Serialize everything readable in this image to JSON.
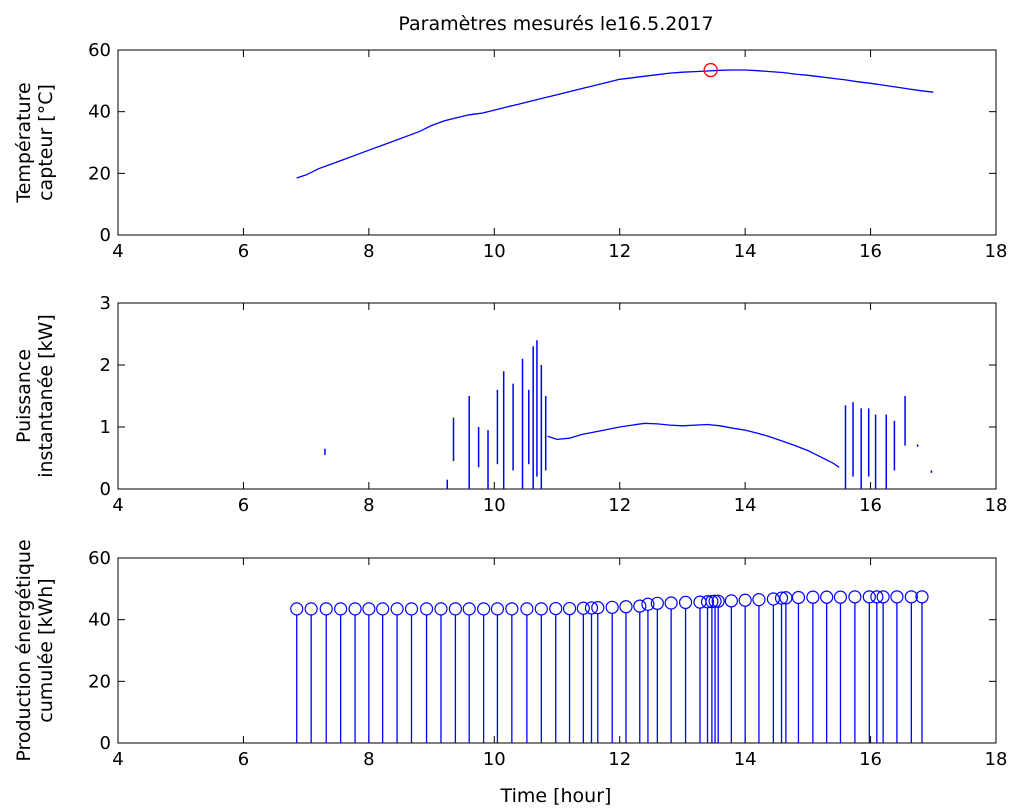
{
  "figure": {
    "title": "Paramètres mesurés le16.5.2017",
    "xlabel": "Time [hour]"
  },
  "colors": {
    "series": "#0000ff",
    "marker_max": "#ff0000",
    "axis": "#000000",
    "background": "#ffffff"
  },
  "chart_data": [
    {
      "type": "line",
      "title": "Paramètres mesurés le16.5.2017",
      "ylabel": [
        "Température",
        "capteur [°C]"
      ],
      "xlabel": "",
      "xlim": [
        4,
        18
      ],
      "ylim": [
        0,
        60
      ],
      "xticks": [
        "4",
        "6",
        "8",
        "10",
        "12",
        "14",
        "16",
        "18"
      ],
      "yticks": [
        "0",
        "20",
        "40",
        "60"
      ],
      "grid": false,
      "series": [
        {
          "x": [
            6.85,
            7.0,
            7.2,
            7.4,
            7.6,
            7.8,
            8.0,
            8.2,
            8.4,
            8.6,
            8.8,
            9.0,
            9.2,
            9.4,
            9.6,
            9.8,
            10.0,
            10.2,
            10.4,
            10.6,
            10.8,
            11.0,
            11.2,
            11.4,
            11.6,
            11.8,
            12.0,
            12.2,
            12.4,
            12.6,
            12.8,
            13.0,
            13.2,
            13.4,
            13.6,
            13.8,
            14.0,
            14.2,
            14.4,
            14.6,
            14.8,
            15.0,
            15.2,
            15.4,
            15.6,
            15.8,
            16.0,
            16.2,
            16.4,
            16.6,
            16.8,
            17.0
          ],
          "y": [
            18.5,
            19.5,
            21.5,
            23.0,
            24.5,
            26.0,
            27.5,
            29.0,
            30.5,
            32.0,
            33.5,
            35.5,
            37.0,
            38.0,
            39.0,
            39.5,
            40.5,
            41.5,
            42.5,
            43.5,
            44.5,
            45.5,
            46.5,
            47.5,
            48.5,
            49.5,
            50.5,
            51.0,
            51.5,
            52.0,
            52.5,
            52.8,
            53.0,
            53.2,
            53.4,
            53.5,
            53.5,
            53.3,
            53.0,
            52.7,
            52.2,
            51.8,
            51.3,
            50.8,
            50.3,
            49.7,
            49.2,
            48.6,
            48.0,
            47.4,
            46.8,
            46.3
          ]
        }
      ],
      "max_marker": {
        "x": 13.45,
        "y": 53.5
      }
    },
    {
      "type": "line",
      "ylabel": [
        "Puissance",
        "instantanée [kW]"
      ],
      "xlabel": "",
      "xlim": [
        4,
        18
      ],
      "ylim": [
        0,
        3
      ],
      "xticks": [
        "4",
        "6",
        "8",
        "10",
        "12",
        "14",
        "16",
        "18"
      ],
      "yticks": [
        "0",
        "1",
        "2",
        "3"
      ],
      "grid": false,
      "series": [
        {
          "x": [
            10.85,
            11.0,
            11.2,
            11.4,
            11.6,
            11.8,
            12.0,
            12.2,
            12.4,
            12.6,
            12.8,
            13.0,
            13.2,
            13.4,
            13.6,
            13.8,
            14.0,
            14.2,
            14.4,
            14.6,
            14.8,
            15.0,
            15.2,
            15.4,
            15.5
          ],
          "y": [
            0.85,
            0.8,
            0.82,
            0.88,
            0.92,
            0.96,
            1.0,
            1.03,
            1.06,
            1.05,
            1.03,
            1.02,
            1.03,
            1.04,
            1.02,
            0.98,
            0.95,
            0.9,
            0.84,
            0.77,
            0.7,
            0.62,
            0.52,
            0.42,
            0.35
          ]
        }
      ],
      "spikes": [
        {
          "x": 7.3,
          "y0": 0.55,
          "y1": 0.65
        },
        {
          "x": 9.25,
          "y0": 0.0,
          "y1": 0.15
        },
        {
          "x": 9.35,
          "y0": 0.45,
          "y1": 1.15
        },
        {
          "x": 9.6,
          "y0": 0.0,
          "y1": 1.5
        },
        {
          "x": 9.75,
          "y0": 0.35,
          "y1": 1.0
        },
        {
          "x": 9.9,
          "y0": 0.0,
          "y1": 0.95
        },
        {
          "x": 10.05,
          "y0": 0.4,
          "y1": 1.6
        },
        {
          "x": 10.15,
          "y0": 0.0,
          "y1": 1.9
        },
        {
          "x": 10.3,
          "y0": 0.3,
          "y1": 1.7
        },
        {
          "x": 10.45,
          "y0": 0.0,
          "y1": 2.1
        },
        {
          "x": 10.55,
          "y0": 0.4,
          "y1": 1.6
        },
        {
          "x": 10.62,
          "y0": 0.0,
          "y1": 2.3
        },
        {
          "x": 10.68,
          "y0": 0.2,
          "y1": 2.4
        },
        {
          "x": 10.75,
          "y0": 0.0,
          "y1": 2.0
        },
        {
          "x": 10.82,
          "y0": 0.3,
          "y1": 1.5
        },
        {
          "x": 15.6,
          "y0": 0.0,
          "y1": 1.35
        },
        {
          "x": 15.72,
          "y0": 0.2,
          "y1": 1.4
        },
        {
          "x": 15.85,
          "y0": 0.0,
          "y1": 1.3
        },
        {
          "x": 15.97,
          "y0": 0.2,
          "y1": 1.3
        },
        {
          "x": 16.08,
          "y0": 0.0,
          "y1": 1.2
        },
        {
          "x": 16.25,
          "y0": 0.0,
          "y1": 1.2
        },
        {
          "x": 16.38,
          "y0": 0.3,
          "y1": 1.1
        },
        {
          "x": 16.55,
          "y0": 0.7,
          "y1": 1.5
        },
        {
          "x": 16.75,
          "y0": 0.68,
          "y1": 0.72
        },
        {
          "x": 16.97,
          "y0": 0.26,
          "y1": 0.3
        }
      ]
    },
    {
      "type": "stem",
      "ylabel": [
        "Production énergétique",
        "cumulée [kWh]"
      ],
      "xlabel": "Time [hour]",
      "xlim": [
        4,
        18
      ],
      "ylim": [
        0,
        60
      ],
      "xticks": [
        "4",
        "6",
        "8",
        "10",
        "12",
        "14",
        "16",
        "18"
      ],
      "yticks": [
        "0",
        "20",
        "40",
        "60"
      ],
      "grid": false,
      "series": [
        {
          "x": [
            6.85,
            7.08,
            7.32,
            7.55,
            7.78,
            8.0,
            8.22,
            8.45,
            8.68,
            8.92,
            9.15,
            9.38,
            9.6,
            9.83,
            10.05,
            10.28,
            10.52,
            10.75,
            10.98,
            11.2,
            11.42,
            11.55,
            11.65,
            11.88,
            12.1,
            12.32,
            12.45,
            12.6,
            12.82,
            13.05,
            13.28,
            13.4,
            13.47,
            13.52,
            13.57,
            13.78,
            14.0,
            14.22,
            14.45,
            14.58,
            14.65,
            14.85,
            15.08,
            15.3,
            15.52,
            15.75,
            15.98,
            16.1,
            16.2,
            16.42,
            16.65,
            16.82
          ],
          "y": [
            43.5,
            43.5,
            43.5,
            43.5,
            43.5,
            43.5,
            43.5,
            43.5,
            43.5,
            43.5,
            43.5,
            43.5,
            43.5,
            43.5,
            43.5,
            43.5,
            43.5,
            43.5,
            43.6,
            43.6,
            43.7,
            43.8,
            43.9,
            44.0,
            44.2,
            44.4,
            45.0,
            45.3,
            45.4,
            45.6,
            45.7,
            45.8,
            45.9,
            46.0,
            46.0,
            46.1,
            46.3,
            46.5,
            46.7,
            47.0,
            47.1,
            47.2,
            47.3,
            47.3,
            47.3,
            47.4,
            47.4,
            47.4,
            47.4,
            47.4,
            47.4,
            47.4
          ]
        }
      ]
    }
  ]
}
